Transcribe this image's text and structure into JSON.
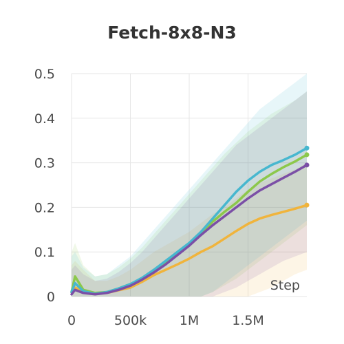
{
  "chart_data": {
    "type": "line",
    "title": "Fetch-8x8-N3",
    "xlabel": "Step",
    "ylabel": "",
    "xlim": [
      0,
      2000000
    ],
    "ylim": [
      0,
      0.5
    ],
    "grid": true,
    "legend": "none",
    "x_ticks": [
      {
        "value": 0,
        "label": "0"
      },
      {
        "value": 500000,
        "label": "500k"
      },
      {
        "value": 1000000,
        "label": "1M"
      },
      {
        "value": 1500000,
        "label": "1.5M"
      }
    ],
    "y_ticks": [
      {
        "value": 0,
        "label": "0"
      },
      {
        "value": 0.1,
        "label": "0.1"
      },
      {
        "value": 0.2,
        "label": "0.2"
      },
      {
        "value": 0.3,
        "label": "0.3"
      },
      {
        "value": 0.4,
        "label": "0.4"
      },
      {
        "value": 0.5,
        "label": "0.5"
      }
    ],
    "series": [
      {
        "color": "#f0b43c",
        "x": [
          0,
          30000,
          100000,
          200000,
          300000,
          400000,
          500000,
          600000,
          700000,
          800000,
          900000,
          1000000,
          1100000,
          1200000,
          1300000,
          1400000,
          1500000,
          1600000,
          1700000,
          1800000,
          1900000,
          2000000
        ],
        "y": [
          0.01,
          0.02,
          0.012,
          0.006,
          0.008,
          0.014,
          0.02,
          0.033,
          0.048,
          0.06,
          0.072,
          0.085,
          0.1,
          0.113,
          0.13,
          0.147,
          0.163,
          0.175,
          0.183,
          0.19,
          0.197,
          0.205
        ],
        "lower": [
          0,
          0,
          0,
          0,
          0,
          0,
          0,
          0,
          0,
          0,
          0,
          0,
          0,
          0,
          0,
          0,
          0,
          0.01,
          0.02,
          0.035,
          0.05,
          0.06
        ],
        "upper": [
          0.07,
          0.08,
          0.06,
          0.035,
          0.035,
          0.045,
          0.06,
          0.08,
          0.1,
          0.115,
          0.13,
          0.145,
          0.165,
          0.185,
          0.2,
          0.22,
          0.24,
          0.255,
          0.265,
          0.275,
          0.285,
          0.3
        ]
      },
      {
        "color": "#8cc84b",
        "x": [
          0,
          30000,
          100000,
          200000,
          300000,
          400000,
          500000,
          600000,
          700000,
          800000,
          900000,
          1000000,
          1100000,
          1200000,
          1300000,
          1400000,
          1500000,
          1600000,
          1700000,
          1800000,
          1900000,
          2000000
        ],
        "y": [
          0.01,
          0.045,
          0.015,
          0.008,
          0.01,
          0.018,
          0.028,
          0.04,
          0.055,
          0.075,
          0.095,
          0.115,
          0.14,
          0.168,
          0.19,
          0.21,
          0.235,
          0.258,
          0.275,
          0.29,
          0.303,
          0.318
        ],
        "lower": [
          0,
          0,
          0,
          0,
          0,
          0,
          0,
          0,
          0,
          0,
          0,
          0,
          0,
          0.01,
          0.025,
          0.04,
          0.06,
          0.08,
          0.1,
          0.12,
          0.14,
          0.16
        ],
        "upper": [
          0.1,
          0.12,
          0.07,
          0.045,
          0.05,
          0.065,
          0.085,
          0.11,
          0.14,
          0.17,
          0.2,
          0.23,
          0.26,
          0.29,
          0.32,
          0.345,
          0.37,
          0.39,
          0.41,
          0.425,
          0.44,
          0.46
        ]
      },
      {
        "color": "#47b7cf",
        "x": [
          0,
          30000,
          100000,
          200000,
          300000,
          400000,
          500000,
          600000,
          700000,
          800000,
          900000,
          1000000,
          1100000,
          1200000,
          1300000,
          1400000,
          1500000,
          1600000,
          1700000,
          1800000,
          1900000,
          2000000
        ],
        "y": [
          0.01,
          0.03,
          0.012,
          0.006,
          0.01,
          0.018,
          0.028,
          0.042,
          0.06,
          0.08,
          0.1,
          0.12,
          0.145,
          0.175,
          0.205,
          0.235,
          0.26,
          0.28,
          0.295,
          0.306,
          0.318,
          0.333
        ],
        "lower": [
          0,
          0,
          0,
          0,
          0,
          0,
          0,
          0,
          0,
          0,
          0,
          0,
          0,
          0.01,
          0.03,
          0.05,
          0.07,
          0.09,
          0.11,
          0.13,
          0.15,
          0.17
        ],
        "upper": [
          0.09,
          0.1,
          0.065,
          0.045,
          0.05,
          0.07,
          0.09,
          0.12,
          0.15,
          0.18,
          0.21,
          0.24,
          0.27,
          0.3,
          0.33,
          0.36,
          0.39,
          0.42,
          0.44,
          0.46,
          0.48,
          0.5
        ]
      },
      {
        "color": "#7b4fa6",
        "x": [
          0,
          30000,
          100000,
          200000,
          300000,
          400000,
          500000,
          600000,
          700000,
          800000,
          900000,
          1000000,
          1100000,
          1200000,
          1300000,
          1400000,
          1500000,
          1600000,
          1700000,
          1800000,
          1900000,
          2000000
        ],
        "y": [
          0.005,
          0.015,
          0.008,
          0.005,
          0.008,
          0.015,
          0.024,
          0.038,
          0.054,
          0.072,
          0.093,
          0.114,
          0.138,
          0.16,
          0.18,
          0.2,
          0.22,
          0.238,
          0.252,
          0.266,
          0.28,
          0.295
        ],
        "lower": [
          0,
          0,
          0,
          0,
          0,
          0,
          0,
          0,
          0,
          0,
          0,
          0,
          0,
          0,
          0.01,
          0.02,
          0.035,
          0.05,
          0.065,
          0.08,
          0.09,
          0.1
        ],
        "upper": [
          0.06,
          0.07,
          0.05,
          0.035,
          0.04,
          0.055,
          0.075,
          0.1,
          0.13,
          0.16,
          0.19,
          0.22,
          0.25,
          0.28,
          0.31,
          0.34,
          0.36,
          0.38,
          0.4,
          0.42,
          0.44,
          0.46
        ]
      }
    ]
  }
}
